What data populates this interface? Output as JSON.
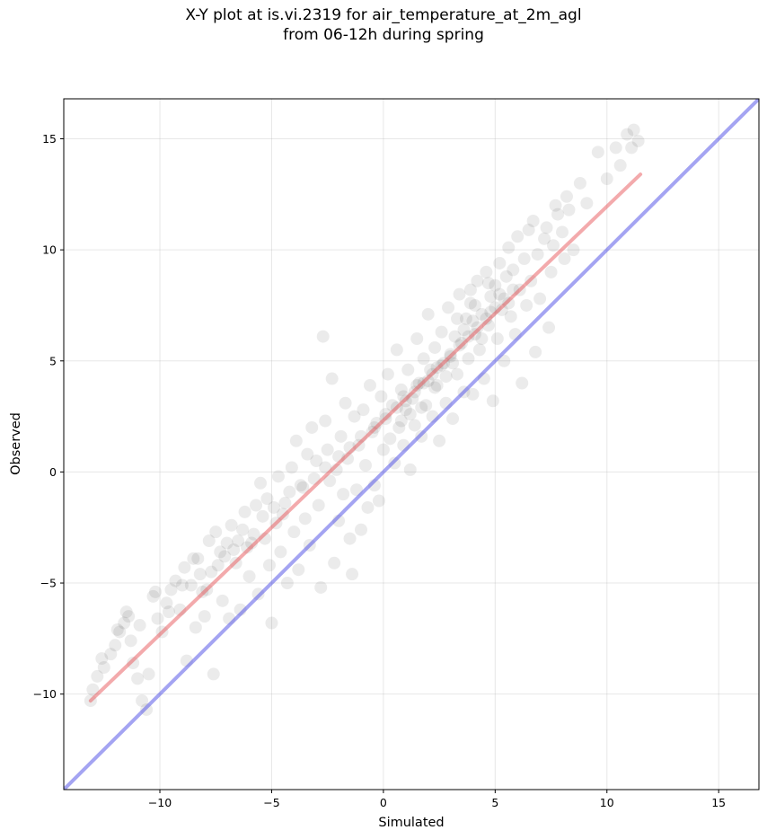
{
  "chart_data": {
    "type": "scatter",
    "title": "X-Y plot at is.vi.2319 for air_temperature_at_2m_agl",
    "subtitle": "from 06-12h during spring",
    "xlabel": "Simulated",
    "ylabel": "Observed",
    "xlim": [
      -14.3,
      16.8
    ],
    "ylim": [
      -14.3,
      16.8
    ],
    "xticks": [
      -10,
      -5,
      0,
      5,
      10,
      15
    ],
    "yticks": [
      -10,
      -5,
      0,
      5,
      10,
      15
    ],
    "xtick_labels": [
      "−10",
      "−5",
      "0",
      "5",
      "10",
      "15"
    ],
    "ytick_labels": [
      "−10",
      "−5",
      "0",
      "5",
      "10",
      "15"
    ],
    "grid": true,
    "lines": [
      {
        "kind": "regression",
        "color": "#e8555a",
        "x": [
          -13.1,
          11.5
        ],
        "y": [
          -10.3,
          13.4
        ]
      },
      {
        "kind": "one-to-one",
        "color": "#4a4ae6",
        "x": [
          -14.3,
          16.8
        ],
        "y": [
          -14.3,
          16.8
        ]
      }
    ],
    "point_color": "#000000",
    "point_opacity": 0.08,
    "points": [
      [
        -13.1,
        -10.3
      ],
      [
        -13.0,
        -9.8
      ],
      [
        -12.8,
        -9.2
      ],
      [
        -12.5,
        -8.8
      ],
      [
        -12.2,
        -8.2
      ],
      [
        -12.0,
        -7.8
      ],
      [
        -11.8,
        -7.2
      ],
      [
        -11.6,
        -6.8
      ],
      [
        -11.5,
        -6.3
      ],
      [
        -11.3,
        -7.6
      ],
      [
        -11.2,
        -8.6
      ],
      [
        -11.0,
        -9.3
      ],
      [
        -10.8,
        -10.3
      ],
      [
        -10.6,
        -10.7
      ],
      [
        -10.5,
        -9.1
      ],
      [
        -10.3,
        -5.6
      ],
      [
        -10.1,
        -6.6
      ],
      [
        -9.9,
        -7.2
      ],
      [
        -9.7,
        -5.9
      ],
      [
        -9.5,
        -5.3
      ],
      [
        -9.3,
        -4.9
      ],
      [
        -9.1,
        -6.2
      ],
      [
        -8.9,
        -4.3
      ],
      [
        -8.8,
        -8.5
      ],
      [
        -8.6,
        -5.1
      ],
      [
        -8.4,
        -7.0
      ],
      [
        -8.3,
        -3.9
      ],
      [
        -8.1,
        -5.4
      ],
      [
        -8.0,
        -6.5
      ],
      [
        -7.9,
        -5.3
      ],
      [
        -7.8,
        -3.1
      ],
      [
        -7.7,
        -4.5
      ],
      [
        -7.6,
        -9.1
      ],
      [
        -7.5,
        -2.7
      ],
      [
        -7.3,
        -3.6
      ],
      [
        -7.2,
        -5.8
      ],
      [
        -7.0,
        -3.2
      ],
      [
        -6.9,
        -6.6
      ],
      [
        -6.8,
        -2.4
      ],
      [
        -6.6,
        -4.1
      ],
      [
        -6.5,
        -3.1
      ],
      [
        -6.4,
        -6.2
      ],
      [
        -6.2,
        -1.8
      ],
      [
        -6.1,
        -3.4
      ],
      [
        -6.0,
        -4.7
      ],
      [
        -5.8,
        -2.8
      ],
      [
        -5.7,
        -1.5
      ],
      [
        -5.6,
        -5.5
      ],
      [
        -5.5,
        -0.5
      ],
      [
        -5.3,
        -3.0
      ],
      [
        -5.2,
        -1.2
      ],
      [
        -5.1,
        -4.2
      ],
      [
        -5.0,
        -6.8
      ],
      [
        -4.8,
        -2.3
      ],
      [
        -4.7,
        -0.2
      ],
      [
        -4.6,
        -3.6
      ],
      [
        -4.4,
        -1.4
      ],
      [
        -4.3,
        -5.0
      ],
      [
        -4.1,
        0.2
      ],
      [
        -4.0,
        -2.7
      ],
      [
        -3.9,
        1.4
      ],
      [
        -3.8,
        -4.4
      ],
      [
        -3.6,
        -0.7
      ],
      [
        -3.5,
        -2.1
      ],
      [
        -3.4,
        0.8
      ],
      [
        -3.3,
        -3.3
      ],
      [
        -3.2,
        2.0
      ],
      [
        -3.0,
        0.5
      ],
      [
        -2.9,
        -1.5
      ],
      [
        -2.8,
        -5.2
      ],
      [
        -2.7,
        6.1
      ],
      [
        -2.6,
        2.3
      ],
      [
        -2.5,
        1.0
      ],
      [
        -2.4,
        -0.4
      ],
      [
        -2.3,
        4.2
      ],
      [
        -2.2,
        -4.1
      ],
      [
        -2.1,
        0.1
      ],
      [
        -2.0,
        -2.2
      ],
      [
        -1.9,
        1.6
      ],
      [
        -1.8,
        -1.0
      ],
      [
        -1.7,
        3.1
      ],
      [
        -1.6,
        0.6
      ],
      [
        -1.5,
        -3.0
      ],
      [
        -1.4,
        -4.6
      ],
      [
        -1.3,
        2.5
      ],
      [
        -1.2,
        -0.8
      ],
      [
        -1.1,
        1.2
      ],
      [
        -1.0,
        -2.6
      ],
      [
        -0.9,
        2.8
      ],
      [
        -0.8,
        0.3
      ],
      [
        -0.7,
        -1.6
      ],
      [
        -0.6,
        3.9
      ],
      [
        -0.5,
        1.8
      ],
      [
        -0.4,
        -0.6
      ],
      [
        -0.3,
        2.2
      ],
      [
        -0.2,
        -1.3
      ],
      [
        -0.1,
        3.4
      ],
      [
        0.0,
        1.0
      ],
      [
        0.1,
        2.6
      ],
      [
        0.2,
        4.4
      ],
      [
        0.3,
        1.5
      ],
      [
        0.4,
        3.0
      ],
      [
        0.5,
        0.4
      ],
      [
        0.6,
        5.5
      ],
      [
        0.7,
        2.0
      ],
      [
        0.8,
        3.7
      ],
      [
        0.9,
        1.2
      ],
      [
        1.0,
        2.8
      ],
      [
        1.1,
        4.6
      ],
      [
        1.2,
        0.1
      ],
      [
        1.3,
        3.3
      ],
      [
        1.4,
        2.1
      ],
      [
        1.5,
        6.0
      ],
      [
        1.6,
        4.0
      ],
      [
        1.7,
        1.6
      ],
      [
        1.8,
        5.1
      ],
      [
        1.9,
        3.0
      ],
      [
        2.0,
        7.1
      ],
      [
        2.1,
        4.6
      ],
      [
        2.2,
        2.5
      ],
      [
        2.3,
        5.6
      ],
      [
        2.4,
        3.9
      ],
      [
        2.5,
        1.4
      ],
      [
        2.6,
        6.3
      ],
      [
        2.7,
        4.9
      ],
      [
        2.8,
        3.1
      ],
      [
        2.9,
        7.4
      ],
      [
        3.0,
        5.2
      ],
      [
        3.1,
        2.4
      ],
      [
        3.2,
        6.1
      ],
      [
        3.3,
        4.4
      ],
      [
        3.4,
        8.0
      ],
      [
        3.5,
        5.8
      ],
      [
        3.6,
        3.6
      ],
      [
        3.7,
        6.9
      ],
      [
        3.8,
        5.1
      ],
      [
        3.9,
        7.6
      ],
      [
        4.0,
        3.5
      ],
      [
        4.1,
        6.2
      ],
      [
        4.2,
        8.6
      ],
      [
        4.3,
        5.5
      ],
      [
        4.4,
        7.1
      ],
      [
        4.5,
        4.2
      ],
      [
        4.6,
        9.0
      ],
      [
        4.7,
        6.6
      ],
      [
        4.8,
        7.9
      ],
      [
        4.9,
        3.2
      ],
      [
        5.0,
        8.4
      ],
      [
        5.1,
        6.0
      ],
      [
        5.2,
        9.4
      ],
      [
        5.3,
        7.3
      ],
      [
        5.4,
        5.0
      ],
      [
        5.5,
        8.8
      ],
      [
        5.6,
        10.1
      ],
      [
        5.7,
        7.0
      ],
      [
        5.8,
        9.1
      ],
      [
        5.9,
        6.2
      ],
      [
        6.0,
        10.6
      ],
      [
        6.1,
        8.2
      ],
      [
        6.2,
        4.0
      ],
      [
        6.3,
        9.6
      ],
      [
        6.4,
        7.5
      ],
      [
        6.5,
        10.9
      ],
      [
        6.6,
        8.6
      ],
      [
        6.7,
        11.3
      ],
      [
        6.8,
        5.4
      ],
      [
        6.9,
        9.8
      ],
      [
        7.0,
        7.8
      ],
      [
        7.2,
        10.5
      ],
      [
        7.3,
        11.0
      ],
      [
        7.4,
        6.5
      ],
      [
        7.5,
        9.0
      ],
      [
        7.6,
        10.2
      ],
      [
        7.7,
        12.0
      ],
      [
        7.8,
        11.6
      ],
      [
        8.0,
        10.8
      ],
      [
        8.1,
        9.6
      ],
      [
        8.2,
        12.4
      ],
      [
        8.3,
        11.8
      ],
      [
        8.5,
        10.0
      ],
      [
        8.8,
        13.0
      ],
      [
        9.1,
        12.1
      ],
      [
        9.6,
        14.4
      ],
      [
        10.0,
        13.2
      ],
      [
        10.4,
        14.6
      ],
      [
        10.6,
        13.8
      ],
      [
        10.9,
        15.2
      ],
      [
        11.1,
        14.6
      ],
      [
        11.2,
        15.4
      ],
      [
        11.4,
        14.9
      ],
      [
        -12.6,
        -8.4
      ],
      [
        -11.9,
        -7.1
      ],
      [
        -11.4,
        -6.5
      ],
      [
        -10.9,
        -6.9
      ],
      [
        -10.2,
        -5.4
      ],
      [
        -9.6,
        -6.3
      ],
      [
        -9.0,
        -5.1
      ],
      [
        -8.5,
        -3.9
      ],
      [
        -8.2,
        -4.6
      ],
      [
        -7.4,
        -4.2
      ],
      [
        -7.1,
        -3.8
      ],
      [
        -6.7,
        -3.5
      ],
      [
        -6.3,
        -2.6
      ],
      [
        -5.9,
        -3.2
      ],
      [
        -5.4,
        -2.0
      ],
      [
        -4.9,
        -1.6
      ],
      [
        -4.5,
        -1.9
      ],
      [
        -4.2,
        -0.9
      ],
      [
        -3.7,
        -0.6
      ],
      [
        -3.1,
        -0.3
      ],
      [
        -2.6,
        0.2
      ],
      [
        -2.0,
        0.7
      ],
      [
        -1.5,
        1.1
      ],
      [
        -1.0,
        1.6
      ],
      [
        -0.4,
        2.0
      ],
      [
        0.1,
        2.4
      ],
      [
        0.6,
        2.9
      ],
      [
        1.0,
        3.2
      ],
      [
        1.4,
        3.6
      ],
      [
        1.8,
        4.0
      ],
      [
        2.2,
        4.4
      ],
      [
        2.6,
        4.8
      ],
      [
        3.0,
        5.3
      ],
      [
        3.4,
        5.7
      ],
      [
        3.8,
        6.1
      ],
      [
        4.2,
        6.5
      ],
      [
        4.6,
        6.9
      ],
      [
        5.0,
        7.4
      ],
      [
        5.4,
        7.8
      ],
      [
        5.8,
        8.2
      ],
      [
        0.8,
        2.3
      ],
      [
        1.2,
        2.6
      ],
      [
        0.9,
        3.4
      ],
      [
        1.5,
        3.9
      ],
      [
        2.0,
        4.1
      ],
      [
        2.4,
        4.7
      ],
      [
        2.8,
        4.3
      ],
      [
        3.1,
        4.9
      ],
      [
        2.3,
        3.8
      ],
      [
        1.7,
        2.9
      ],
      [
        3.6,
        6.4
      ],
      [
        4.0,
        6.8
      ],
      [
        4.4,
        6.0
      ],
      [
        4.8,
        7.2
      ],
      [
        4.1,
        7.5
      ],
      [
        3.9,
        8.2
      ],
      [
        4.7,
        8.5
      ],
      [
        5.2,
        8.0
      ],
      [
        5.6,
        7.6
      ],
      [
        3.3,
        6.9
      ]
    ]
  }
}
